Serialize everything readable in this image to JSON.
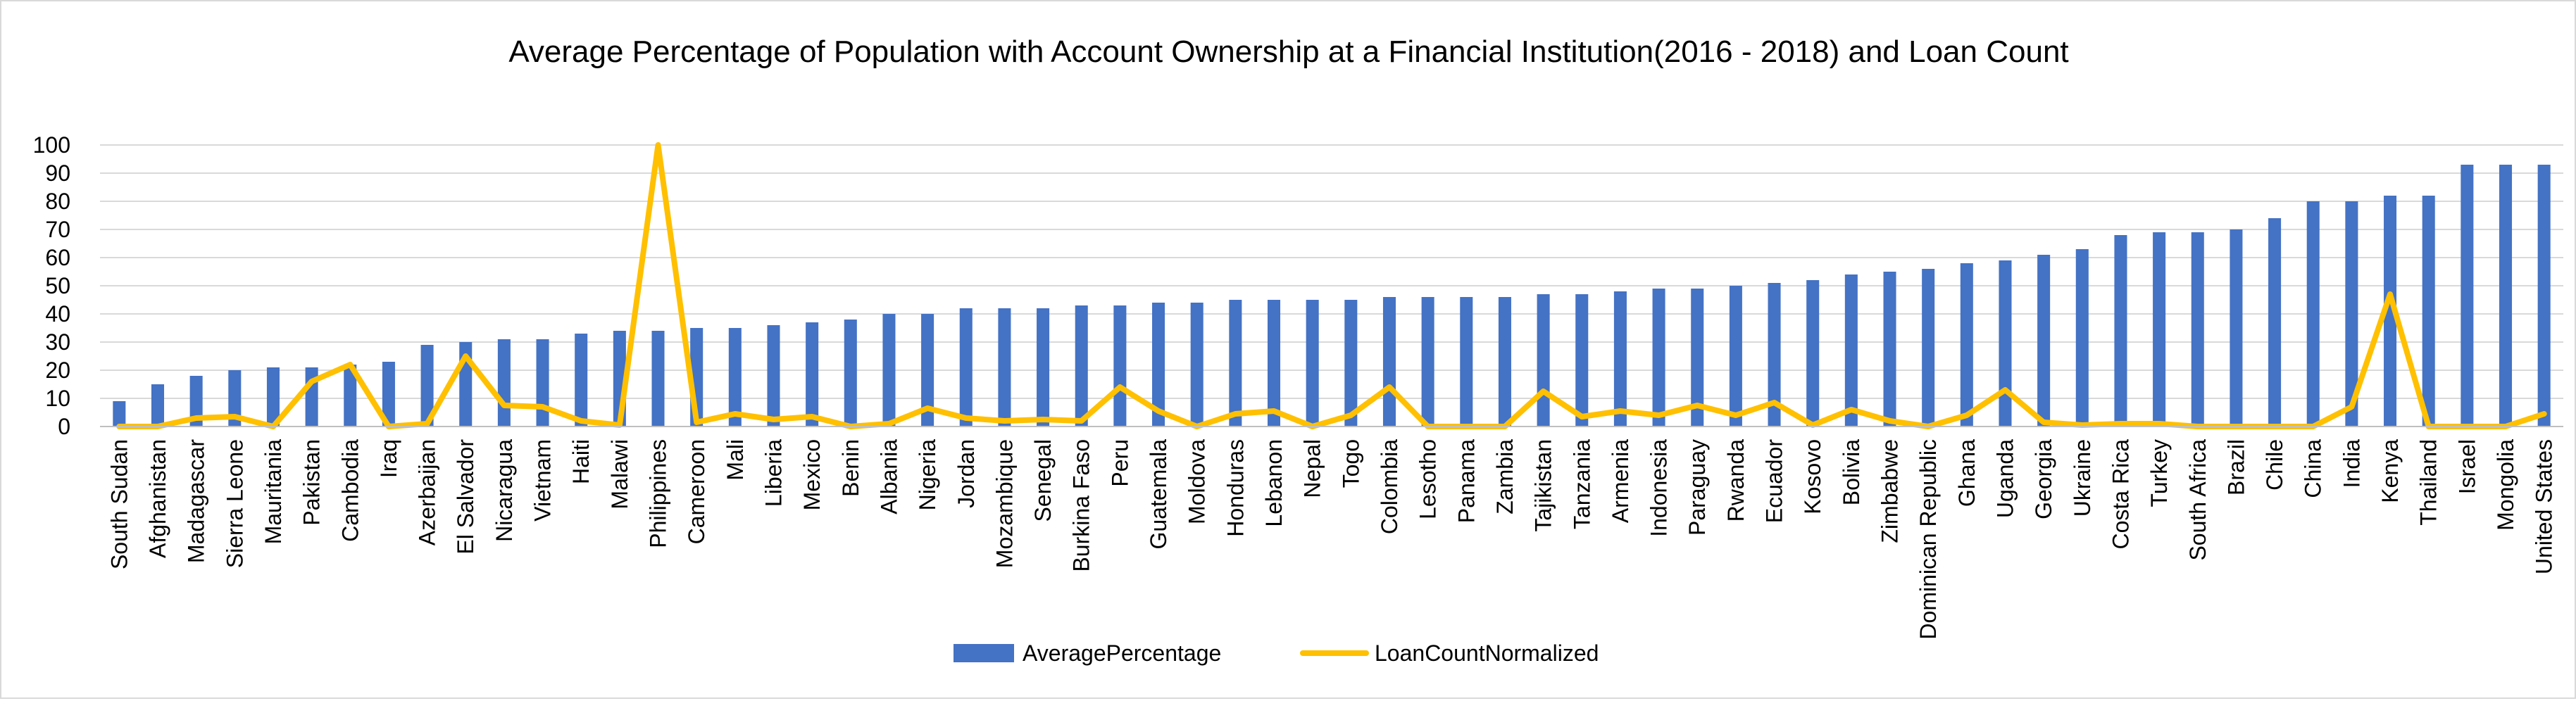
{
  "chart_data": {
    "type": "bar",
    "title": "Average Percentage of Population with Account Ownership at a Financial Institution(2016 - 2018) and Loan Count",
    "xlabel": "",
    "ylabel": "",
    "ylim": [
      0,
      100
    ],
    "yticks": [
      0,
      10,
      20,
      30,
      40,
      50,
      60,
      70,
      80,
      90,
      100
    ],
    "grid": true,
    "legend_position": "bottom",
    "categories": [
      "South Sudan",
      "Afghanistan",
      "Madagascar",
      "Sierra Leone",
      "Mauritania",
      "Pakistan",
      "Cambodia",
      "Iraq",
      "Azerbaijan",
      "El Salvador",
      "Nicaragua",
      "Vietnam",
      "Haiti",
      "Malawi",
      "Philippines",
      "Cameroon",
      "Mali",
      "Liberia",
      "Mexico",
      "Benin",
      "Albania",
      "Nigeria",
      "Jordan",
      "Mozambique",
      "Senegal",
      "Burkina Faso",
      "Peru",
      "Guatemala",
      "Moldova",
      "Honduras",
      "Lebanon",
      "Nepal",
      "Togo",
      "Colombia",
      "Lesotho",
      "Panama",
      "Zambia",
      "Tajikistan",
      "Tanzania",
      "Armenia",
      "Indonesia",
      "Paraguay",
      "Rwanda",
      "Ecuador",
      "Kosovo",
      "Bolivia",
      "Zimbabwe",
      "Dominican Republic",
      "Ghana",
      "Uganda",
      "Georgia",
      "Ukraine",
      "Costa Rica",
      "Turkey",
      "South Africa",
      "Brazil",
      "Chile",
      "China",
      "India",
      "Kenya",
      "Thailand",
      "Israel",
      "Mongolia",
      "United States"
    ],
    "series": [
      {
        "name": "AveragePercentage",
        "type": "bar",
        "color": "#4472C4",
        "values": [
          9,
          15,
          18,
          20,
          21,
          21,
          22,
          23,
          29,
          30,
          31,
          31,
          33,
          34,
          34,
          35,
          35,
          36,
          37,
          38,
          40,
          40,
          42,
          42,
          42,
          43,
          43,
          44,
          44,
          45,
          45,
          45,
          45,
          46,
          46,
          46,
          46,
          47,
          47,
          48,
          49,
          49,
          50,
          51,
          52,
          54,
          55,
          56,
          58,
          59,
          61,
          63,
          68,
          69,
          69,
          70,
          74,
          80,
          80,
          82,
          82,
          93,
          93,
          93
        ]
      },
      {
        "name": "LoanCountNormalized",
        "type": "line",
        "color": "#FFC000",
        "values": [
          0,
          0,
          3,
          3.5,
          0,
          16,
          22,
          0,
          1,
          25,
          7.5,
          7,
          2,
          0.5,
          100,
          1.5,
          4.5,
          2.5,
          3.5,
          0,
          1,
          6.5,
          3,
          2,
          2.5,
          2,
          14,
          5.5,
          0,
          4.5,
          5.5,
          0,
          4,
          14,
          0,
          0,
          0,
          12.5,
          3.5,
          5.5,
          4,
          7.5,
          4,
          8.5,
          0.5,
          6,
          2,
          0,
          4,
          13,
          1.5,
          0.5,
          1,
          1,
          0,
          0,
          0,
          0,
          7,
          47,
          0,
          0,
          0,
          4.5
        ]
      }
    ]
  }
}
